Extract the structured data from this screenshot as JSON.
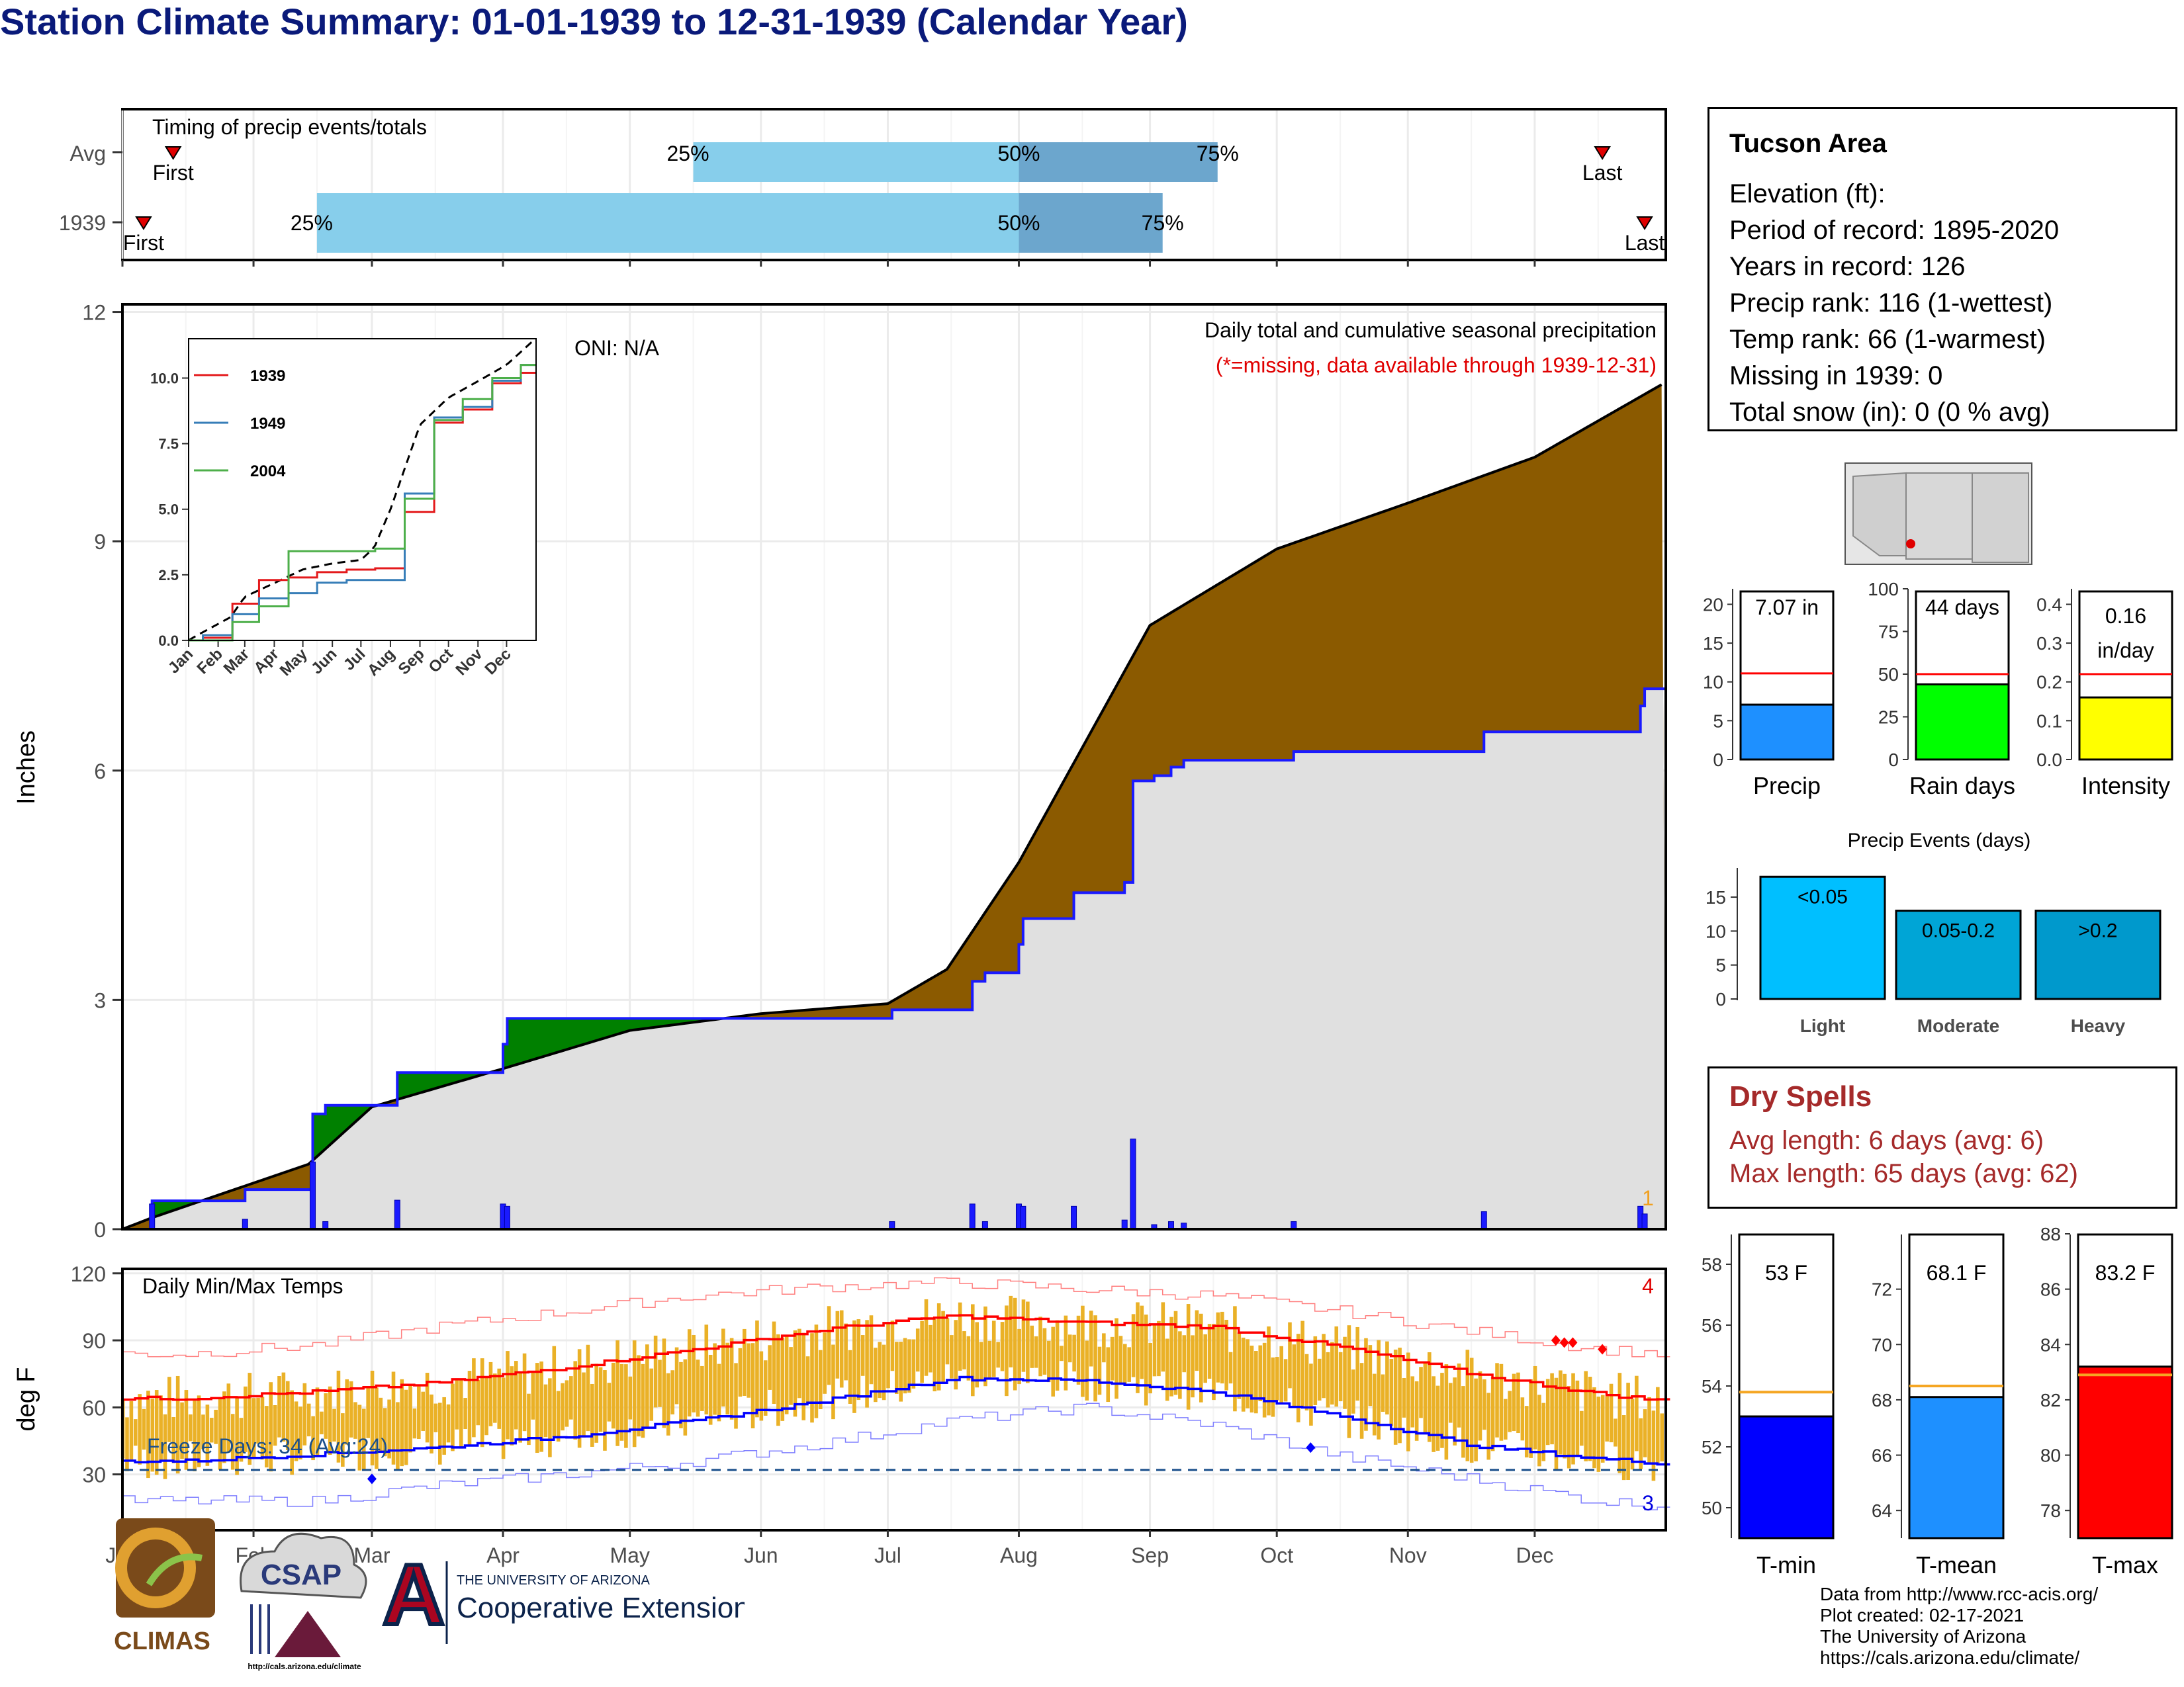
{
  "title": "Station Climate Summary: 01-01-1939 to 12-31-1939 (Calendar Year)",
  "timing": {
    "label": "Timing of precip events/totals",
    "rows": [
      {
        "name": "Avg",
        "first_label": "First",
        "last_label": "Last",
        "first": "01-13",
        "last": "12-17",
        "p25": "May 16",
        "p50": "Aug 1",
        "p75": "Sep 17",
        "p25_label": "25%",
        "p50_label": "50%",
        "p75_label": "75%"
      },
      {
        "name": "1939",
        "first_label": "First",
        "last_label": "Last",
        "first": "01-06",
        "last": "12-27",
        "p25": "Feb 16",
        "p50": "Aug 1",
        "p75": "Sep 4",
        "p25_label": "25%",
        "p50_label": "50%",
        "p75_label": "75%"
      }
    ]
  },
  "precip_panel": {
    "ylabel": "Inches",
    "yticks": [
      "0",
      "3",
      "6",
      "9",
      "12"
    ],
    "oni": "ONI: N/A",
    "note_line1": "Daily total and cumulative seasonal precipitation",
    "note_line2": "(*=missing, data available through 1939-12-31)",
    "missing_count": "1"
  },
  "inset": {
    "yticks": [
      "0.0",
      "2.5",
      "5.0",
      "7.5",
      "10.0"
    ],
    "xticks": [
      "Jan",
      "Feb",
      "Mar",
      "Apr",
      "May",
      "Jun",
      "Jul",
      "Aug",
      "Sep",
      "Oct",
      "Nov",
      "Dec"
    ],
    "legend": [
      "1939",
      "1949",
      "2004"
    ],
    "colors": [
      "#e41a1c",
      "#377eb8",
      "#4daf4a"
    ]
  },
  "temp_panel": {
    "ylabel": "deg F",
    "label": "Daily Min/Max Temps",
    "yticks": [
      "30",
      "60",
      "90",
      "120"
    ],
    "freeze": "Freeze Days: 34 (Avg:24)",
    "hot_count": "4",
    "cold_count": "3"
  },
  "months": [
    "Jan",
    "Feb",
    "Mar",
    "Apr",
    "May",
    "Jun",
    "Jul",
    "Aug",
    "Sep",
    "Oct",
    "Nov",
    "Dec"
  ],
  "station": {
    "name": "Tucson Area",
    "lines": [
      "Elevation (ft):",
      "Period of record: 1895-2020",
      "Years in record: 126",
      "Precip rank: 116 (1-wettest)",
      "Temp rank: 66 (1-warmest)",
      "Missing in 1939: 0",
      "Total snow (in): 0 (0 % avg)"
    ]
  },
  "mini_bars": {
    "precip": {
      "label": "Precip",
      "value": 7.07,
      "avg": 11.1,
      "text": "7.07 in",
      "yticks": [
        "0",
        "5",
        "10",
        "15",
        "20"
      ],
      "color": "#1e90ff"
    },
    "rain_days": {
      "label": "Rain days",
      "value": 44,
      "avg": 50,
      "text": "44 days",
      "yticks": [
        "0",
        "25",
        "50",
        "75",
        "100"
      ],
      "color": "#00ff00"
    },
    "intensity": {
      "label": "Intensity",
      "value": 0.16,
      "avg": 0.22,
      "text1": "0.16",
      "text2": "in/day",
      "yticks": [
        "0.0",
        "0.1",
        "0.2",
        "0.3",
        "0.4"
      ],
      "color": "#ffff00"
    }
  },
  "precip_events": {
    "title": "Precip Events (days)",
    "yticks": [
      "0",
      "5",
      "10",
      "15"
    ],
    "categories": [
      "Light",
      "Moderate",
      "Heavy"
    ],
    "bins": [
      "<0.05",
      "0.05-0.2",
      ">0.2"
    ],
    "values": [
      18,
      13,
      13
    ],
    "colors": [
      "#00bfff",
      "#00a5d6",
      "#0099cc"
    ]
  },
  "dry_spells": {
    "title": "Dry Spells",
    "line1": "Avg length: 6 days (avg: 6)",
    "line2": "Max length: 65 days (avg: 62)"
  },
  "temp_bars": {
    "tmin": {
      "label": "T-min",
      "text": "53 F",
      "value": 53.0,
      "avg": 53.8,
      "yticks": [
        "50",
        "52",
        "54",
        "56",
        "58"
      ],
      "color": "#0000ff"
    },
    "tmean": {
      "label": "T-mean",
      "text": "68.1 F",
      "value": 68.1,
      "avg": 68.5,
      "yticks": [
        "64",
        "66",
        "68",
        "70",
        "72"
      ],
      "color": "#1e90ff"
    },
    "tmax": {
      "label": "T-max",
      "text": "83.2 F",
      "value": 83.2,
      "avg": 82.9,
      "yticks": [
        "78",
        "80",
        "82",
        "84",
        "86",
        "88"
      ],
      "color": "#ff0000"
    }
  },
  "credits": [
    "Data from http://www.rcc-acis.org/",
    "Plot created: 02-17-2021",
    "The University of Arizona",
    "https://cals.arizona.edu/climate/"
  ],
  "logos": {
    "climas": "CLIMAS",
    "csap": "CSAP",
    "csap_url": "http://cals.arizona.edu/climate",
    "ua_small": "THE UNIVERSITY OF ARIZONA",
    "ua_large": "Cooperative Extension"
  },
  "chart_data": [
    {
      "type": "bar",
      "title": "Timing of precip events/totals",
      "categories": [
        "Avg",
        "1939"
      ],
      "series": [
        {
          "name": "25%",
          "values": [
            "May 16",
            "Feb 16"
          ]
        },
        {
          "name": "50%",
          "values": [
            "Aug 1",
            "Aug 1"
          ]
        },
        {
          "name": "75%",
          "values": [
            "Sep 17",
            "Sep 4"
          ]
        }
      ]
    },
    {
      "type": "area",
      "title": "Daily total and cumulative seasonal precipitation",
      "ylabel": "Inches",
      "ylim": [
        0,
        12
      ],
      "x": [
        "Jan 1",
        "Jan 8",
        "Feb 14",
        "Mar 1",
        "Apr 1",
        "May 1",
        "Jun 1",
        "Jul 1",
        "Jul 15",
        "Aug 1",
        "Aug 15",
        "Sep 1",
        "Oct 1",
        "Nov 1",
        "Dec 1",
        "Dec 31"
      ],
      "series": [
        {
          "name": "Average cumulative",
          "values": [
            0,
            0.15,
            0.85,
            1.6,
            2.1,
            2.6,
            2.82,
            2.95,
            3.4,
            4.8,
            6.2,
            7.9,
            8.9,
            9.5,
            10.1,
            11.05
          ]
        },
        {
          "name": "1939 cumulative",
          "values": [
            0,
            0.32,
            1.42,
            1.98,
            2.65,
            2.68,
            2.7,
            2.78,
            2.85,
            4.0,
            4.35,
            6.0,
            6.2,
            6.4,
            6.7,
            7.07
          ]
        }
      ],
      "daily_bars": {
        "dates": [
          "Jan 8",
          "Jan 30",
          "Feb 15",
          "Feb 18",
          "Mar 7",
          "Apr 1",
          "Apr 2",
          "Jul 2",
          "Jul 21",
          "Jul 24",
          "Aug 1",
          "Aug 2",
          "Aug 14",
          "Aug 26",
          "Aug 28",
          "Sep 2",
          "Sep 6",
          "Sep 9",
          "Oct 5",
          "Nov 19",
          "Dec 26",
          "Dec 27"
        ],
        "values": [
          0.33,
          0.13,
          0.88,
          0.1,
          0.38,
          0.33,
          0.3,
          0.1,
          0.33,
          0.1,
          0.33,
          0.3,
          0.3,
          0.12,
          1.18,
          0.06,
          0.1,
          0.08,
          0.1,
          0.23,
          0.3,
          0.2
        ]
      }
    },
    {
      "type": "line",
      "title": "",
      "ylim": [
        0,
        11.5
      ],
      "x": [
        "Jan",
        "Feb",
        "Mar",
        "Apr",
        "May",
        "Jun",
        "Jul",
        "Aug",
        "Sep",
        "Oct",
        "Nov",
        "Dec"
      ],
      "series": [
        {
          "name": "1939",
          "values": [
            0.1,
            1.4,
            2.3,
            2.4,
            2.6,
            2.7,
            2.75,
            4.9,
            8.3,
            8.8,
            9.8,
            10.2
          ]
        },
        {
          "name": "1949",
          "values": [
            0.2,
            1.0,
            1.6,
            1.8,
            2.2,
            2.3,
            2.3,
            5.6,
            8.5,
            8.9,
            9.9,
            10.5
          ]
        },
        {
          "name": "2004",
          "values": [
            0.0,
            0.7,
            1.3,
            3.4,
            3.4,
            3.4,
            3.5,
            5.4,
            8.4,
            9.2,
            10.0,
            10.5
          ]
        }
      ]
    },
    {
      "type": "line",
      "title": "Daily Min/Max Temps",
      "ylabel": "deg F",
      "ylim": [
        5,
        122
      ],
      "x": [
        "Jan",
        "Feb",
        "Mar",
        "Apr",
        "May",
        "Jun",
        "Jul",
        "Aug",
        "Sep",
        "Oct",
        "Nov",
        "Dec",
        "Dec 31"
      ],
      "series": [
        {
          "name": "Average max",
          "values": [
            64,
            67,
            71,
            78,
            86,
            95,
            101,
            98,
            96,
            87,
            75,
            66,
            63
          ]
        },
        {
          "name": "Average min",
          "values": [
            36,
            39,
            42,
            47,
            54,
            63,
            73,
            72,
            67,
            56,
            43,
            37,
            35
          ]
        },
        {
          "name": "Record high",
          "values": [
            84,
            88,
            96,
            103,
            110,
            114,
            116,
            113,
            110,
            103,
            94,
            86,
            84
          ]
        },
        {
          "name": "Record low",
          "values": [
            18,
            18,
            25,
            30,
            36,
            44,
            54,
            60,
            52,
            38,
            28,
            18,
            16
          ]
        }
      ],
      "freeze_line": 32
    },
    {
      "type": "bar",
      "categories": [
        "Precip"
      ],
      "values": [
        7.07
      ],
      "average": 11.1,
      "ylim": [
        0,
        22
      ]
    },
    {
      "type": "bar",
      "categories": [
        "Rain days"
      ],
      "values": [
        44
      ],
      "average": 50,
      "ylim": [
        0,
        100
      ]
    },
    {
      "type": "bar",
      "categories": [
        "Intensity"
      ],
      "values": [
        0.16
      ],
      "average": 0.22,
      "ylim": [
        0,
        0.44
      ]
    },
    {
      "type": "bar",
      "title": "Precip Events (days)",
      "categories": [
        "Light",
        "Moderate",
        "Heavy"
      ],
      "values": [
        18,
        13,
        13
      ],
      "ylim": [
        0,
        19
      ]
    },
    {
      "type": "bar",
      "categories": [
        "T-min"
      ],
      "values": [
        53.0
      ],
      "average": 53.8,
      "ylim": [
        49,
        59
      ]
    },
    {
      "type": "bar",
      "categories": [
        "T-mean"
      ],
      "values": [
        68.1
      ],
      "average": 68.5,
      "ylim": [
        63,
        74
      ]
    },
    {
      "type": "bar",
      "categories": [
        "T-max"
      ],
      "values": [
        83.2
      ],
      "average": 82.9,
      "ylim": [
        77,
        88
      ]
    }
  ]
}
